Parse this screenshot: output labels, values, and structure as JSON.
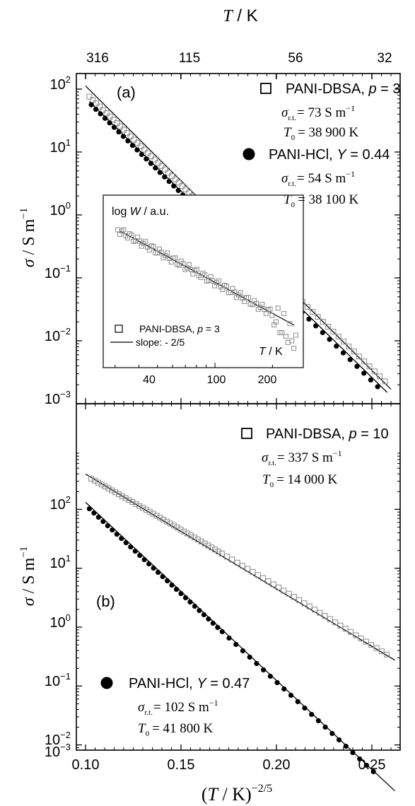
{
  "figure": {
    "top_axis_title": "T / K",
    "bottom_axis_title": "(T / K)−2/5",
    "y_axis_title": "σ / S m−1",
    "top_ticks": [
      "316",
      "115",
      "56",
      "32"
    ],
    "x_ticks": [
      "0.10",
      "0.15",
      "0.20",
      "0.25"
    ],
    "y_ticks": [
      "10−3",
      "10−2",
      "10−1",
      "100",
      "101",
      "102"
    ]
  },
  "chart_data": [
    {
      "type": "scatter",
      "panel": "(a)",
      "xlim": [
        0.095,
        0.265
      ],
      "ylim_log10": [
        -3.1,
        2.3
      ],
      "y_scale": "log",
      "xlabel": "(T / K)^-2/5",
      "ylabel": "σ / S m^-1",
      "top_axis": {
        "label": "T / K",
        "ticks": [
          316,
          115,
          56,
          32
        ]
      },
      "series": [
        {
          "name": "PANI-DBSA, p = 3",
          "marker": "open-square",
          "color": "#777777",
          "fit_line": {
            "x": [
              0.1,
              0.26
            ],
            "log10_y": [
              2.05,
              -2.77
            ]
          },
          "x_range": [
            0.102,
            0.257
          ],
          "log10_start": 1.88,
          "log10_end": -2.65,
          "annotations": {
            "sigma_rt": "= 73 S m−1",
            "T0": "= 38 900 K"
          }
        },
        {
          "name": "PANI-HCl, Y = 0.44",
          "marker": "filled-circle",
          "color": "#000000",
          "fit_line": {
            "x": [
              0.102,
              0.258
            ],
            "log10_y": [
              1.8,
              -2.82
            ]
          },
          "x_range": [
            0.103,
            0.254
          ],
          "log10_start": 1.75,
          "log10_end": -2.76,
          "annotations": {
            "sigma_rt": "= 54 S m−1",
            "T0": "= 38 100 K"
          }
        }
      ],
      "inset": {
        "type": "scatter",
        "x_scale": "log",
        "xlim": [
          26,
          290
        ],
        "ylabel": "log W / a.u.",
        "xlabel": "T / K",
        "x_ticks": [
          40,
          100,
          200
        ],
        "legend": [
          "PANI-DBSA, p = 3",
          "slope: - 2/5"
        ]
      }
    },
    {
      "type": "scatter",
      "panel": "(b)",
      "xlim": [
        0.095,
        0.265
      ],
      "ylim_log10": [
        -3.1,
        2.75
      ],
      "y_scale": "log",
      "xlabel": "(T / K)^-2/5",
      "ylabel": "σ / S m^-1",
      "series": [
        {
          "name": "PANI-DBSA, p = 10",
          "marker": "open-square",
          "color": "#777777",
          "fit_line": {
            "x": [
              0.1,
              0.262
            ],
            "log10_y": [
              2.6,
              -0.56
            ]
          },
          "x_range": [
            0.103,
            0.258
          ],
          "log10_start": 2.52,
          "log10_end": -0.47,
          "annotations": {
            "sigma_rt": "= 337 S m−1",
            "T0": "= 14 000 K"
          }
        },
        {
          "name": "PANI-HCl, Y = 0.47",
          "marker": "filled-circle",
          "color": "#000000",
          "fit_line": {
            "x": [
              0.1,
              0.262
            ],
            "log10_y": [
              2.12,
              -2.78
            ]
          },
          "x_range": [
            0.102,
            0.253
          ],
          "log10_start": 2.01,
          "log10_end": -2.52,
          "annotations": {
            "sigma_rt": "= 102 S m−1",
            "T0": "= 41 800 K"
          }
        }
      ]
    }
  ],
  "legend_a": {
    "panel_label": "(a)",
    "s1_prefix": "PANI-DBSA, ",
    "s1_var": "p",
    "s1_val": " = 3",
    "s1_sig": "= 73 S m",
    "s1_T0": "= 38 900 K",
    "s2_prefix": "PANI-HCl, ",
    "s2_var": "Y",
    "s2_val": " = 0.44",
    "s2_sig": "= 54 S m",
    "s2_T0": "= 38 100 K"
  },
  "legend_b": {
    "panel_label": "(b)",
    "s1_prefix": "PANI-DBSA, ",
    "s1_var": "p",
    "s1_val": " = 10",
    "s1_sig": "= 337 S m",
    "s1_T0": "= 14 000 K",
    "s2_prefix": "PANI-HCl, ",
    "s2_var": "Y",
    "s2_val": " = 0.47",
    "s2_sig": "= 102 S m",
    "s2_T0": "= 41 800 K"
  },
  "inset": {
    "ylabel": "log W / a.u.",
    "xlabel": "T / K",
    "x_ticks": [
      "40",
      "100",
      "200"
    ],
    "legend_marker_text": "PANI-DBSA, ",
    "legend_marker_var": "p",
    "legend_marker_val": " = 3",
    "legend_line_text": "slope: - 2/5"
  },
  "common": {
    "sigma": "σ",
    "rt_sub": "r.t.",
    "T": "T",
    "zero_sub": "0",
    "minus_one": "−1"
  }
}
